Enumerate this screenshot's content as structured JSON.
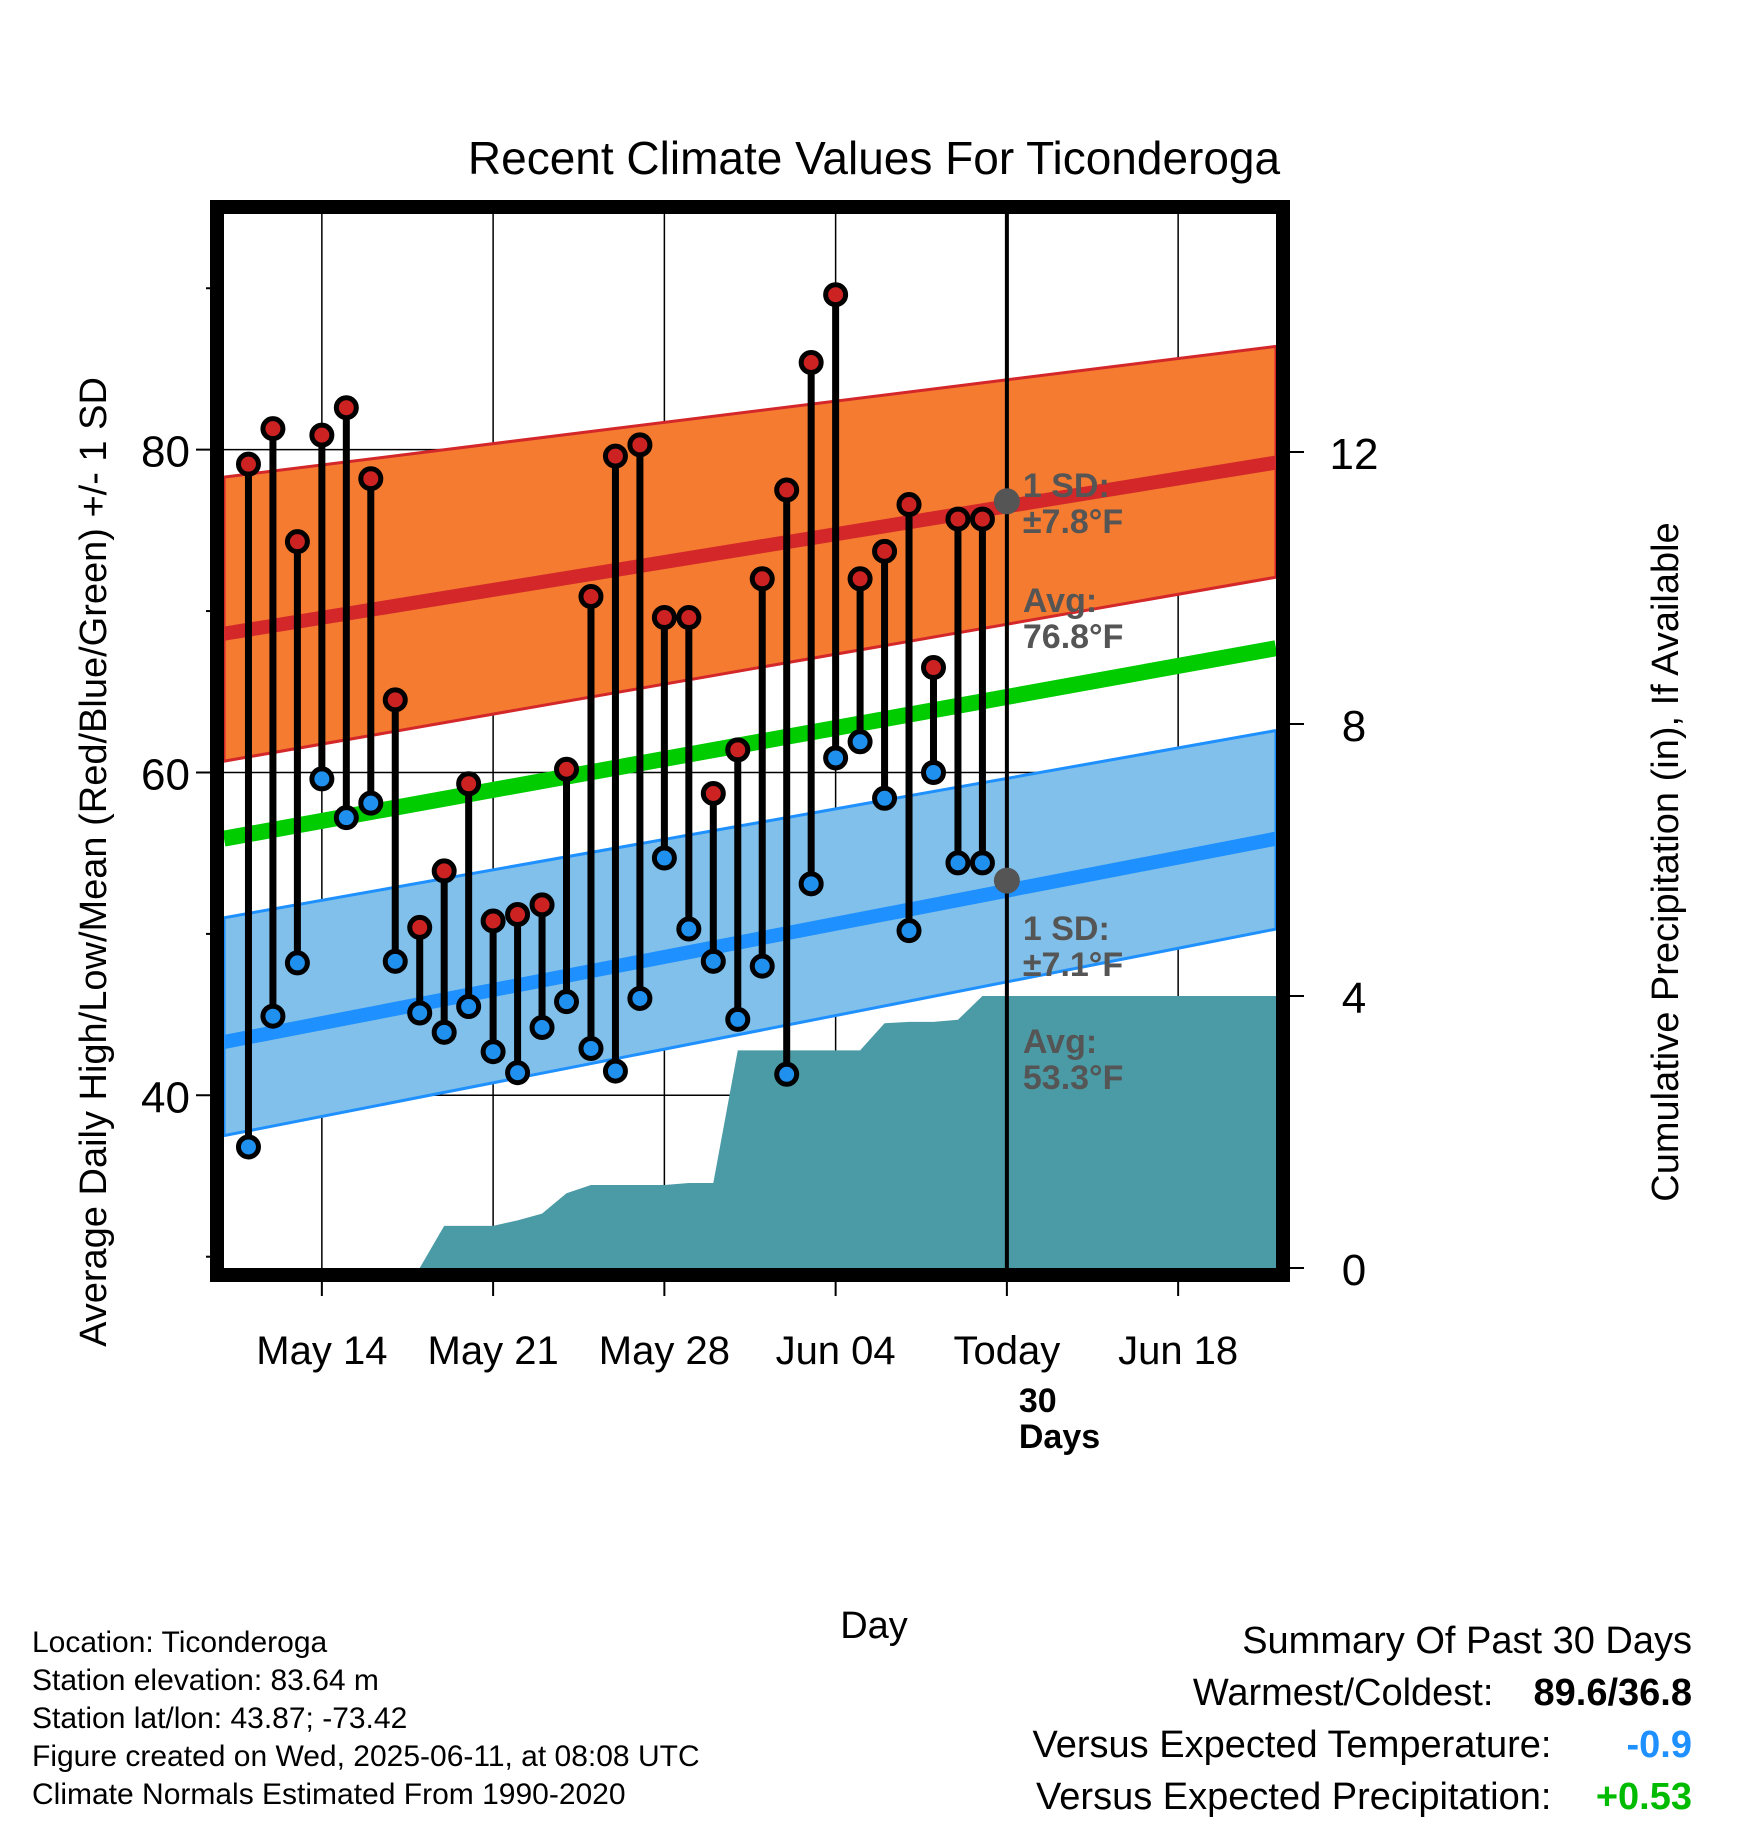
{
  "chart_data": {
    "type": "range-dot",
    "title": "Recent Climate Values For Ticonderoga",
    "xlabel": "Day",
    "ylabel": "Average Daily High/Low/Mean (Red/Blue/Green) +/- 1 SD",
    "ylabel_right": "Cumulative Precipitation (in), If Available",
    "x_range_days": [
      "2025-05-10",
      "2025-06-22"
    ],
    "ylim": [
      29.3,
      94.6
    ],
    "y_ticks_major": [
      40,
      60,
      80
    ],
    "y_ticks_minor": [
      30,
      50,
      70,
      90
    ],
    "ylim_right": [
      0,
      15.5
    ],
    "y_right_ticks": [
      0,
      4,
      8,
      12
    ],
    "x_ticks": [
      {
        "date": "2025-05-14",
        "label": "May 14"
      },
      {
        "date": "2025-05-21",
        "label": "May 21"
      },
      {
        "date": "2025-05-28",
        "label": "May 28"
      },
      {
        "date": "2025-06-04",
        "label": "Jun 04"
      },
      {
        "date": "2025-06-11",
        "label": "Today"
      },
      {
        "date": "2025-06-18",
        "label": "Jun 18"
      }
    ],
    "grid": true,
    "today": "2025-06-11",
    "observations": {
      "dates": [
        "2025-05-11",
        "2025-05-12",
        "2025-05-13",
        "2025-05-14",
        "2025-05-15",
        "2025-05-16",
        "2025-05-17",
        "2025-05-18",
        "2025-05-19",
        "2025-05-20",
        "2025-05-21",
        "2025-05-22",
        "2025-05-23",
        "2025-05-24",
        "2025-05-25",
        "2025-05-26",
        "2025-05-27",
        "2025-05-28",
        "2025-05-29",
        "2025-05-30",
        "2025-05-31",
        "2025-06-01",
        "2025-06-02",
        "2025-06-03",
        "2025-06-04",
        "2025-06-05",
        "2025-06-06",
        "2025-06-07",
        "2025-06-08",
        "2025-06-09",
        "2025-06-10"
      ],
      "high": [
        79.1,
        81.3,
        74.3,
        80.9,
        82.6,
        78.2,
        64.5,
        50.4,
        53.9,
        59.3,
        50.8,
        51.2,
        51.8,
        60.2,
        70.9,
        79.6,
        80.3,
        69.6,
        69.6,
        58.7,
        61.4,
        72.0,
        77.5,
        85.4,
        89.6,
        72.0,
        73.7,
        76.6,
        66.5,
        75.7,
        75.7
      ],
      "low": [
        36.8,
        44.9,
        48.2,
        59.6,
        57.2,
        58.1,
        48.3,
        45.1,
        43.9,
        45.5,
        42.7,
        41.4,
        44.2,
        45.8,
        42.9,
        41.5,
        46.0,
        54.7,
        50.3,
        48.3,
        44.7,
        48.0,
        41.3,
        53.1,
        60.9,
        61.9,
        58.4,
        50.2,
        60.0,
        54.4,
        54.4
      ]
    },
    "normals": {
      "start": "2025-05-10",
      "end": "2025-06-22",
      "mean_high": [
        68.6,
        79.2
      ],
      "high_sd_band": [
        [
          60.7,
          78.3
        ],
        [
          72.1,
          86.4
        ]
      ],
      "mean_low": [
        43.3,
        55.9
      ],
      "low_sd_band": [
        [
          37.5,
          51.0
        ],
        [
          50.3,
          62.6
        ]
      ],
      "mean": [
        55.9,
        67.7
      ]
    },
    "precipitation": {
      "dates": [
        "2025-05-10",
        "2025-05-18",
        "2025-05-19",
        "2025-05-21",
        "2025-05-22",
        "2025-05-23",
        "2025-05-24",
        "2025-05-25",
        "2025-05-26",
        "2025-05-27",
        "2025-05-28",
        "2025-05-29",
        "2025-05-30",
        "2025-05-31",
        "2025-06-01",
        "2025-06-02",
        "2025-06-03",
        "2025-06-04",
        "2025-06-05",
        "2025-06-06",
        "2025-06-07",
        "2025-06-08",
        "2025-06-09",
        "2025-06-10",
        "2025-06-11",
        "2025-06-22"
      ],
      "cumulative_in": [
        0,
        0,
        0.62,
        0.62,
        0.7,
        0.8,
        1.1,
        1.22,
        1.22,
        1.22,
        1.22,
        1.25,
        1.25,
        3.2,
        3.2,
        3.2,
        3.2,
        3.2,
        3.2,
        3.6,
        3.62,
        3.62,
        3.65,
        4.0,
        4.0,
        4.0
      ]
    },
    "annotations": {
      "high_sd_label": [
        "1 SD:",
        "±7.8°F"
      ],
      "high_avg_label": [
        "Avg:",
        "76.8°F"
      ],
      "high_avg_value": 76.8,
      "low_sd_label": [
        "1 SD:",
        "±7.1°F"
      ],
      "low_avg_label": [
        "Avg:",
        "53.3°F"
      ],
      "low_avg_value": 53.3,
      "days_label": [
        "30",
        "Days"
      ]
    },
    "colors": {
      "high_band": "#f47b30",
      "high_line": "#d3272a",
      "low_band": "#80c0ea",
      "low_line": "#1e90ff",
      "mean_line": "#00cc00",
      "precip": "#4a9ba6",
      "high_dot": "#cc2222",
      "low_dot": "#2090ee",
      "annotation": "#555555"
    }
  },
  "info": {
    "location": "Location: Ticonderoga",
    "elevation": "Station elevation: 83.64 m",
    "latlon": "Station lat/lon: 43.87; -73.42",
    "created": "Figure created on Wed, 2025-06-11, at 08:08 UTC",
    "normals": "Climate Normals Estimated From 1990-2020"
  },
  "summary": {
    "heading": "Summary Of Past 30 Days",
    "warm_label": "Warmest/Coldest:",
    "warm_value": "89.6/36.8",
    "temp_label": "Versus Expected Temperature:",
    "temp_value": "-0.9",
    "temp_color": "#1e90ff",
    "precip_label": "Versus Expected Precipitation:",
    "precip_value": "+0.53",
    "precip_color": "#00bb00"
  }
}
